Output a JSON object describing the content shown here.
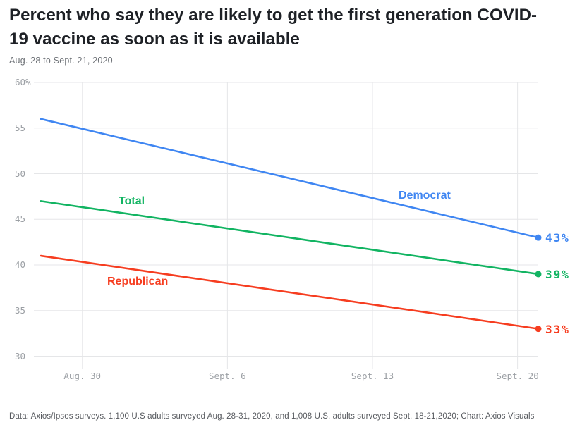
{
  "header": {
    "title": "Percent who say they are likely to get the first generation COVID-19 vaccine as soon as it is available",
    "subtitle": "Aug. 28 to Sept. 21, 2020"
  },
  "footer": {
    "credit": "Data: Axios/Ipsos surveys. 1,100 U.S adults surveyed Aug. 28-31, 2020, and 1,008 U.S. adults surveyed Sept. 18-21,2020; Chart: Axios Visuals"
  },
  "colors": {
    "title_text": "#1e2126",
    "muted_text": "#6e7277",
    "tick_text": "#9b9fa4",
    "footer_text": "#56595e",
    "gridline": "#e5e6e8",
    "democrat_blue": "#3f86f2",
    "total_green": "#12b462",
    "republican_red": "#f63d20"
  },
  "chart_data": {
    "type": "line",
    "title": "Percent who say they are likely to get the first generation COVID-19 vaccine as soon as it is available",
    "subtitle": "Aug. 28 to Sept. 21, 2020",
    "x_unit": "days since Aug. 28, 2020",
    "x_range": [
      0,
      24
    ],
    "ylim": [
      30,
      60
    ],
    "grid": true,
    "legend_position": "inline-labels",
    "y_ticks": [
      {
        "label": "60%",
        "value": 60
      },
      {
        "label": "55",
        "value": 55
      },
      {
        "label": "50",
        "value": 50
      },
      {
        "label": "45",
        "value": 45
      },
      {
        "label": "40",
        "value": 40
      },
      {
        "label": "35",
        "value": 35
      },
      {
        "label": "30",
        "value": 30
      }
    ],
    "x_ticks": [
      {
        "label": "Aug. 30",
        "day": 2
      },
      {
        "label": "Sept. 6",
        "day": 9
      },
      {
        "label": "Sept. 13",
        "day": 16
      },
      {
        "label": "Sept. 20",
        "day": 23
      }
    ],
    "series": [
      {
        "name": "Democrat",
        "color": "#3f86f2",
        "points": [
          {
            "day": 0,
            "value": 56
          },
          {
            "day": 24,
            "value": 43
          }
        ],
        "end_label": "43%"
      },
      {
        "name": "Total",
        "color": "#12b462",
        "points": [
          {
            "day": 0,
            "value": 47
          },
          {
            "day": 24,
            "value": 39
          }
        ],
        "end_label": "39%"
      },
      {
        "name": "Republican",
        "color": "#f63d20",
        "points": [
          {
            "day": 0,
            "value": 41
          },
          {
            "day": 24,
            "value": 33
          }
        ],
        "end_label": "33%"
      }
    ]
  }
}
